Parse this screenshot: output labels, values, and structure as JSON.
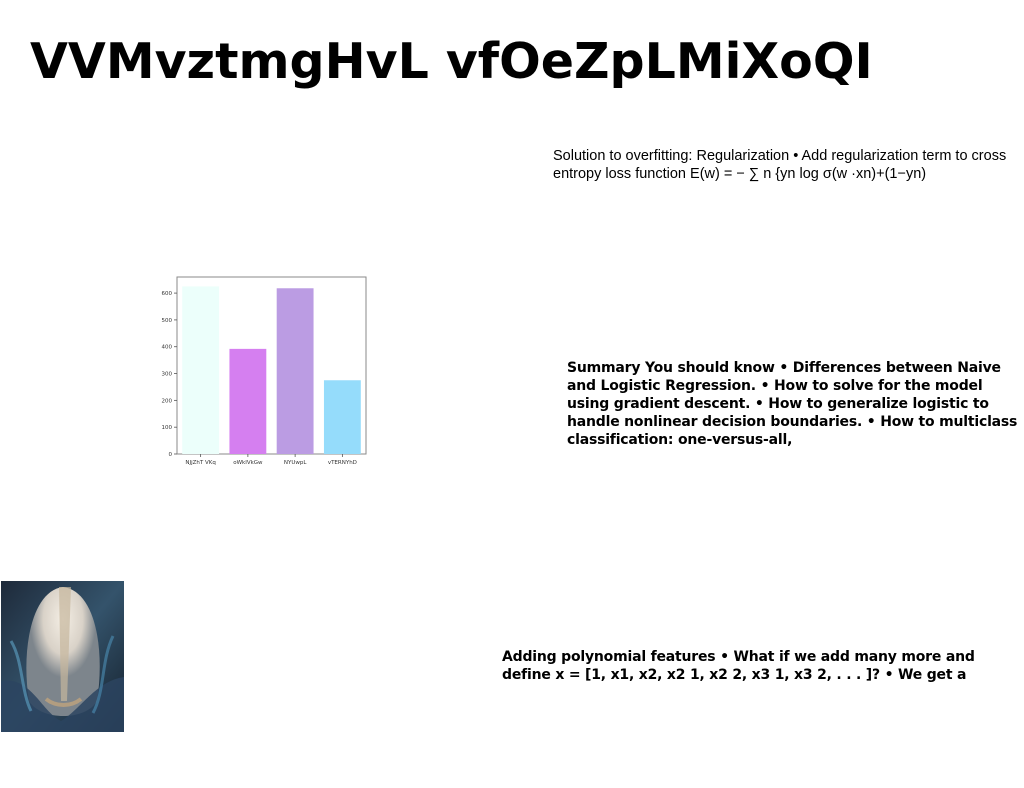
{
  "title": "VVMvztmgHvL vfOeZpLMiXoQI",
  "blocks": {
    "overfitting": "Solution to overfitting: Regularization • Add regularization term to cross entropy loss function E(w) = − ∑ n {yn log σ(w ·xn)+(1−yn)",
    "summary": "Summary You should know • Differences between Naive and Logistic Regression. • How to solve for the model using gradient descent. • How to generalize logistic to handle nonlinear decision boundaries. • How to multiclass classification: one-versus-all,",
    "polynomial": "Adding polynomial features • What if we add many more and define x = [1, x1, x2, x2 1, x2 2, x3 1, x3 2, . . . ]? • We get a"
  },
  "chart_data": {
    "type": "bar",
    "categories": [
      "NJjZhT VKq",
      "oWkIVkGw",
      "NYUwpL",
      "vTERNYhD"
    ],
    "values": [
      625,
      392,
      618,
      275
    ],
    "colors": [
      "#ecfffb",
      "#d57ff0",
      "#bb9ce3",
      "#95dcfb"
    ],
    "ylim": [
      0,
      660
    ],
    "yticks": [
      0,
      100,
      200,
      300,
      400,
      500,
      600
    ],
    "title": "",
    "xlabel": "",
    "ylabel": ""
  },
  "image": {
    "icon": "cave-photo"
  }
}
